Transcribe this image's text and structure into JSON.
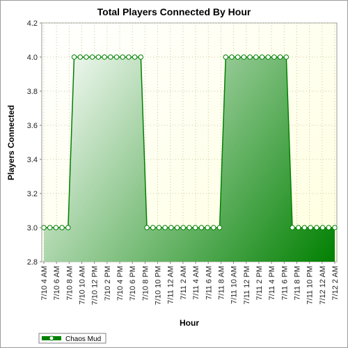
{
  "chart_data": {
    "type": "area",
    "title": "Total Players Connected By Hour",
    "xlabel": "Hour",
    "ylabel": "Players Connected",
    "ylim": [
      2.8,
      4.2
    ],
    "yticks": [
      "2.8",
      "3.0",
      "3.2",
      "3.4",
      "3.6",
      "3.8",
      "4.0",
      "4.2"
    ],
    "grid": true,
    "legend": "bottom-left",
    "xtick_labels": [
      "7/10 4 AM",
      "7/10 6 AM",
      "7/10 8 AM",
      "7/10 10 AM",
      "7/10 12 PM",
      "7/10 2 PM",
      "7/10 4 PM",
      "7/10 6 PM",
      "7/10 8 PM",
      "7/10 10 PM",
      "7/11 12 AM",
      "7/11 2 AM",
      "7/11 4 AM",
      "7/11 6 AM",
      "7/11 8 AM",
      "7/11 10 AM",
      "7/11 12 PM",
      "7/11 2 PM",
      "7/11 4 PM",
      "7/11 6 PM",
      "7/11 8 PM",
      "7/11 10 PM",
      "7/12 12 AM",
      "7/12 2 AM"
    ],
    "series": [
      {
        "name": "Chaos Mud",
        "color": "#008000",
        "values": [
          3,
          3,
          3,
          3,
          3,
          4,
          4,
          4,
          4,
          4,
          4,
          4,
          4,
          4,
          4,
          4,
          4,
          3,
          3,
          3,
          3,
          3,
          3,
          3,
          3,
          3,
          3,
          3,
          3,
          3,
          4,
          4,
          4,
          4,
          4,
          4,
          4,
          4,
          4,
          4,
          4,
          3,
          3,
          3,
          3,
          3,
          3,
          3,
          3
        ]
      }
    ]
  },
  "colors": {
    "plot_background_light": "#ffffff",
    "plot_background_warm": "#ffffe0",
    "series_dark": "#008000",
    "grid": "#c8c8a0"
  }
}
